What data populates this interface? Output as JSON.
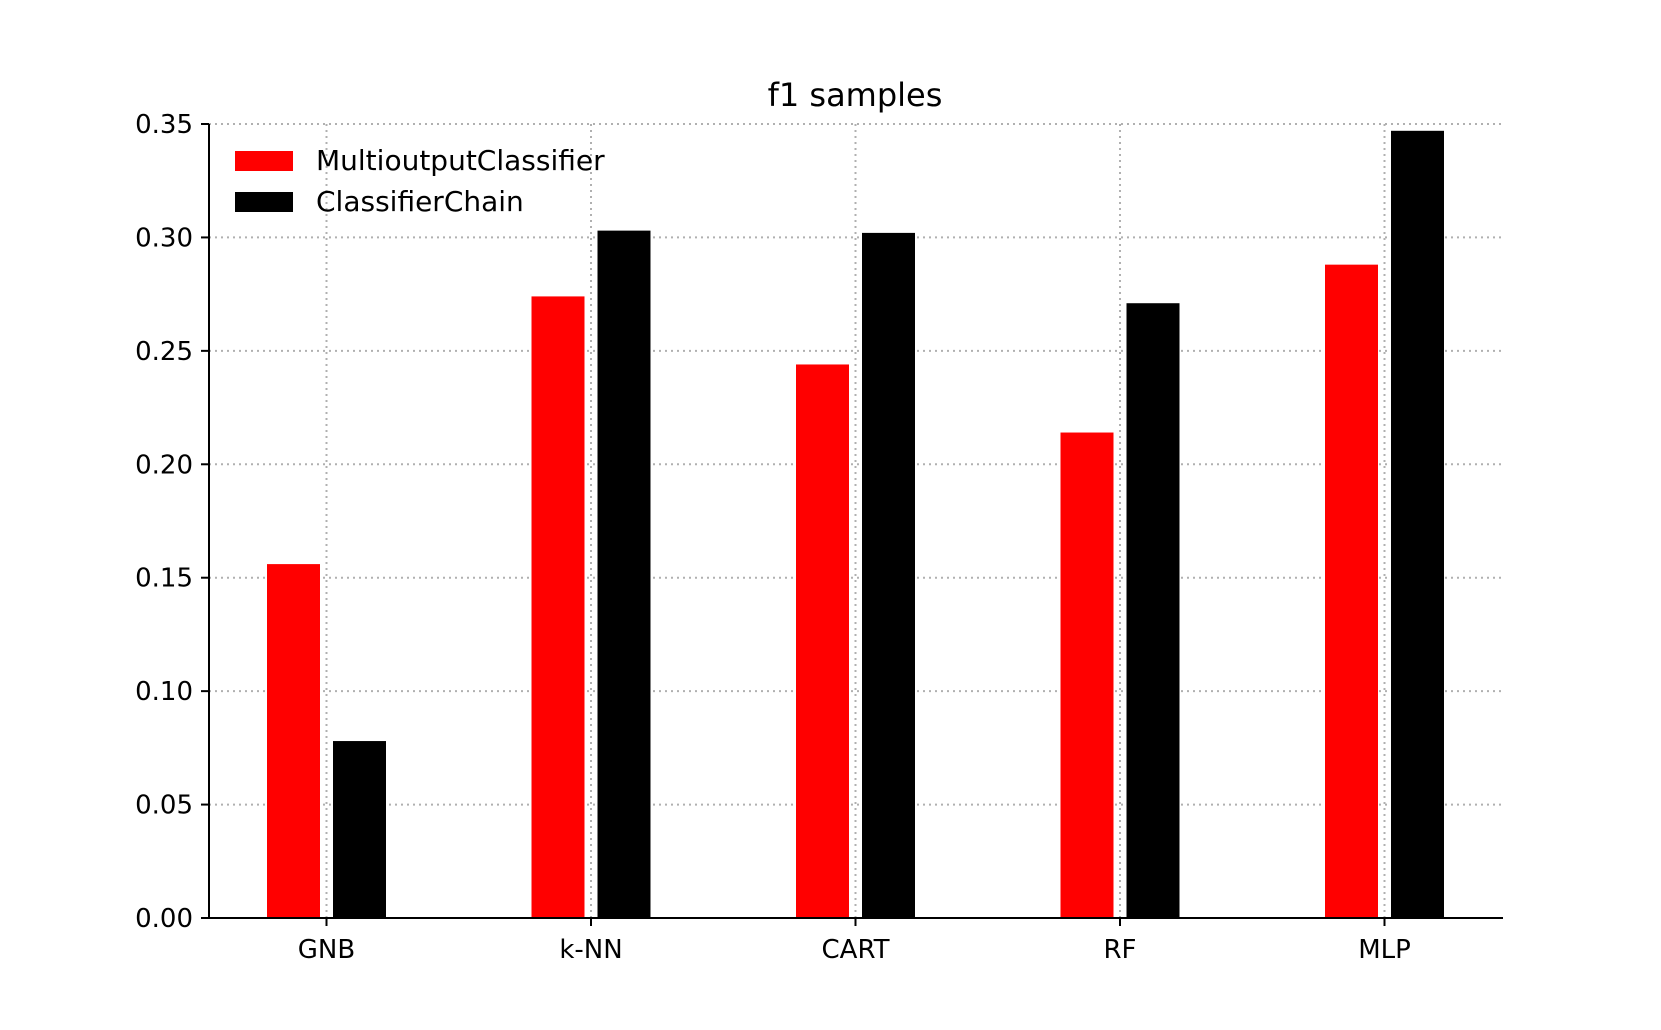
{
  "chart_data": {
    "type": "bar",
    "title": "f1 samples",
    "xlabel": "",
    "ylabel": "",
    "categories": [
      "GNB",
      "k-NN",
      "CART",
      "RF",
      "MLP"
    ],
    "series": [
      {
        "name": "MultioutputClassifier",
        "color": "#ff0000",
        "values": [
          0.156,
          0.274,
          0.244,
          0.214,
          0.288
        ]
      },
      {
        "name": "ClassifierChain",
        "color": "#000000",
        "values": [
          0.078,
          0.303,
          0.302,
          0.271,
          0.347
        ]
      }
    ],
    "ylim": [
      0,
      0.35
    ],
    "yticks": [
      "0.00",
      "0.05",
      "0.10",
      "0.15",
      "0.20",
      "0.25",
      "0.30",
      "0.35"
    ],
    "grid": true,
    "grid_style": "dotted",
    "legend_position": "top-left"
  }
}
